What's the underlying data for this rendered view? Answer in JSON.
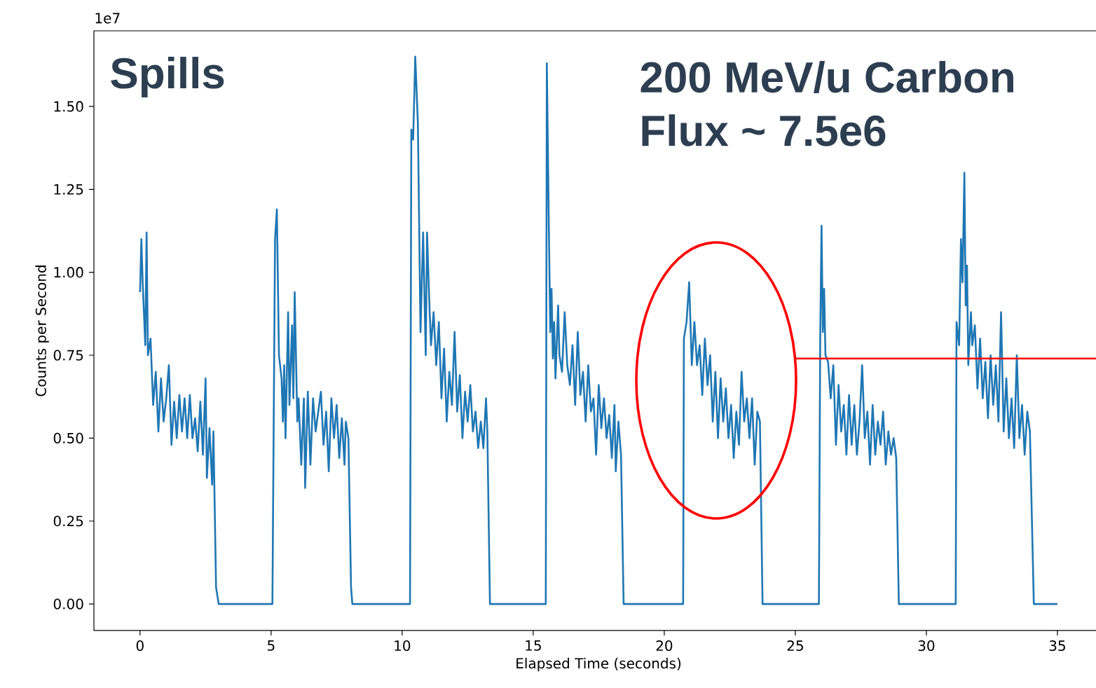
{
  "chart_data": {
    "type": "line",
    "xlabel": "Elapsed Time (seconds)",
    "ylabel": "Counts per Second",
    "annotations": [
      "1e7",
      "Spills",
      "200 MeV/u Carbon",
      "Flux ~ 7.5e6"
    ],
    "xlim": [
      -1.76,
      36.74
    ],
    "xticks": [
      0,
      5,
      10,
      15,
      20,
      25,
      30,
      35
    ],
    "ylim": [
      -0.08,
      1.728
    ],
    "yticks": [
      {
        "value": 0,
        "label": "0.00"
      },
      {
        "value": 0.25,
        "label": "0.25"
      },
      {
        "value": 0.5,
        "label": "0.50"
      },
      {
        "value": 0.75,
        "label": "0.75"
      },
      {
        "value": 1.0,
        "label": "1.00"
      },
      {
        "value": 1.25,
        "label": "1.25"
      },
      {
        "value": 1.5,
        "label": "1.50"
      }
    ],
    "grid": false,
    "marker": "none",
    "line_style": "solid",
    "series": [
      {
        "color": "#1f77b4",
        "x": [
          0.0,
          0.05,
          0.1,
          0.2,
          0.25,
          0.3,
          0.4,
          0.5,
          0.6,
          0.7,
          0.8,
          0.9,
          1.0,
          1.1,
          1.2,
          1.3,
          1.4,
          1.5,
          1.6,
          1.7,
          1.8,
          1.9,
          2.0,
          2.1,
          2.2,
          2.3,
          2.4,
          2.5,
          2.55,
          2.65,
          2.75,
          2.8,
          2.9,
          3.0,
          5.05,
          5.15,
          5.22,
          5.3,
          5.4,
          5.45,
          5.5,
          5.55,
          5.65,
          5.7,
          5.8,
          5.85,
          5.9,
          6.0,
          6.05,
          6.15,
          6.25,
          6.3,
          6.4,
          6.5,
          6.6,
          6.7,
          6.8,
          6.9,
          7.0,
          7.1,
          7.2,
          7.3,
          7.4,
          7.5,
          7.6,
          7.7,
          7.8,
          7.85,
          7.95,
          8.05,
          8.1,
          10.3,
          10.35,
          10.42,
          10.5,
          10.6,
          10.7,
          10.8,
          10.9,
          10.95,
          11.05,
          11.1,
          11.2,
          11.3,
          11.4,
          11.5,
          11.6,
          11.7,
          11.8,
          11.9,
          12.0,
          12.1,
          12.2,
          12.3,
          12.4,
          12.5,
          12.6,
          12.7,
          12.8,
          12.9,
          13.0,
          13.1,
          13.2,
          13.25,
          13.35,
          15.48,
          15.52,
          15.6,
          15.65,
          15.7,
          15.75,
          15.8,
          15.85,
          15.95,
          16.0,
          16.1,
          16.2,
          16.3,
          16.4,
          16.5,
          16.6,
          16.7,
          16.8,
          16.9,
          17.0,
          17.1,
          17.2,
          17.3,
          17.4,
          17.5,
          17.6,
          17.7,
          17.8,
          17.9,
          18.0,
          18.1,
          18.15,
          18.25,
          18.35,
          18.45,
          20.72,
          20.75,
          20.85,
          20.95,
          21.05,
          21.15,
          21.25,
          21.35,
          21.45,
          21.55,
          21.65,
          21.75,
          21.85,
          21.95,
          22.05,
          22.15,
          22.25,
          22.35,
          22.45,
          22.55,
          22.65,
          22.75,
          22.85,
          22.95,
          23.05,
          23.15,
          23.25,
          23.35,
          23.45,
          23.55,
          23.65,
          23.75,
          25.9,
          25.95,
          26.0,
          26.05,
          26.1,
          26.15,
          26.25,
          26.35,
          26.45,
          26.55,
          26.65,
          26.75,
          26.85,
          26.95,
          27.05,
          27.15,
          27.25,
          27.35,
          27.45,
          27.55,
          27.65,
          27.75,
          27.85,
          27.95,
          28.05,
          28.15,
          28.25,
          28.35,
          28.45,
          28.55,
          28.65,
          28.75,
          28.85,
          28.95,
          31.12,
          31.15,
          31.25,
          31.32,
          31.38,
          31.45,
          31.5,
          31.55,
          31.6,
          31.7,
          31.75,
          31.85,
          31.95,
          32.05,
          32.15,
          32.25,
          32.35,
          32.45,
          32.55,
          32.65,
          32.75,
          32.85,
          32.95,
          33.05,
          33.15,
          33.25,
          33.35,
          33.45,
          33.55,
          33.65,
          33.75,
          33.85,
          33.95,
          34.1,
          35.0
        ],
        "values": [
          0.94,
          1.1,
          0.97,
          0.78,
          1.12,
          0.75,
          0.8,
          0.6,
          0.7,
          0.52,
          0.68,
          0.55,
          0.62,
          0.72,
          0.48,
          0.61,
          0.5,
          0.63,
          0.52,
          0.62,
          0.5,
          0.63,
          0.5,
          0.56,
          0.46,
          0.61,
          0.45,
          0.68,
          0.38,
          0.53,
          0.36,
          0.52,
          0.05,
          0.0,
          0.0,
          1.1,
          1.19,
          0.75,
          0.68,
          0.55,
          0.72,
          0.5,
          0.88,
          0.6,
          0.84,
          0.62,
          0.94,
          0.55,
          0.62,
          0.42,
          0.62,
          0.35,
          0.64,
          0.42,
          0.62,
          0.52,
          0.58,
          0.64,
          0.48,
          0.58,
          0.4,
          0.62,
          0.5,
          0.6,
          0.44,
          0.56,
          0.42,
          0.55,
          0.5,
          0.05,
          0.0,
          0.0,
          1.43,
          1.4,
          1.65,
          1.45,
          0.82,
          1.12,
          0.75,
          1.12,
          0.88,
          0.78,
          0.88,
          0.72,
          0.85,
          0.62,
          0.77,
          0.55,
          0.7,
          0.6,
          0.82,
          0.58,
          0.69,
          0.5,
          0.64,
          0.55,
          0.66,
          0.52,
          0.58,
          0.47,
          0.55,
          0.47,
          0.62,
          0.52,
          0.0,
          0.0,
          1.63,
          1.12,
          0.82,
          0.95,
          0.74,
          0.85,
          0.68,
          0.9,
          0.75,
          0.7,
          0.88,
          0.72,
          0.66,
          0.78,
          0.6,
          0.82,
          0.63,
          0.7,
          0.55,
          0.72,
          0.58,
          0.62,
          0.45,
          0.66,
          0.53,
          0.62,
          0.5,
          0.57,
          0.44,
          0.6,
          0.4,
          0.55,
          0.45,
          0.0,
          0.0,
          0.8,
          0.85,
          0.97,
          0.72,
          0.85,
          0.72,
          0.78,
          0.63,
          0.8,
          0.66,
          0.75,
          0.55,
          0.7,
          0.5,
          0.68,
          0.55,
          0.65,
          0.5,
          0.6,
          0.44,
          0.58,
          0.48,
          0.7,
          0.55,
          0.62,
          0.5,
          0.62,
          0.42,
          0.58,
          0.55,
          0.0,
          0.0,
          0.8,
          1.14,
          0.82,
          0.95,
          0.75,
          0.73,
          0.62,
          0.72,
          0.48,
          0.66,
          0.52,
          0.6,
          0.45,
          0.63,
          0.48,
          0.6,
          0.45,
          0.55,
          0.72,
          0.5,
          0.58,
          0.42,
          0.6,
          0.45,
          0.55,
          0.48,
          0.58,
          0.42,
          0.52,
          0.45,
          0.5,
          0.44,
          0.0,
          0.0,
          0.85,
          0.78,
          1.1,
          0.97,
          1.3,
          0.9,
          1.02,
          0.72,
          0.88,
          0.78,
          0.84,
          0.65,
          0.8,
          0.62,
          0.73,
          0.56,
          0.75,
          0.6,
          0.72,
          0.55,
          0.88,
          0.52,
          0.68,
          0.5,
          0.62,
          0.47,
          0.75,
          0.5,
          0.6,
          0.45,
          0.58,
          0.52,
          0.0,
          0.0
        ]
      },
      {
        "color": "#ff0000",
        "x": [
          24.97,
          36.74
        ],
        "values": [
          0.74,
          0.74
        ]
      }
    ]
  }
}
